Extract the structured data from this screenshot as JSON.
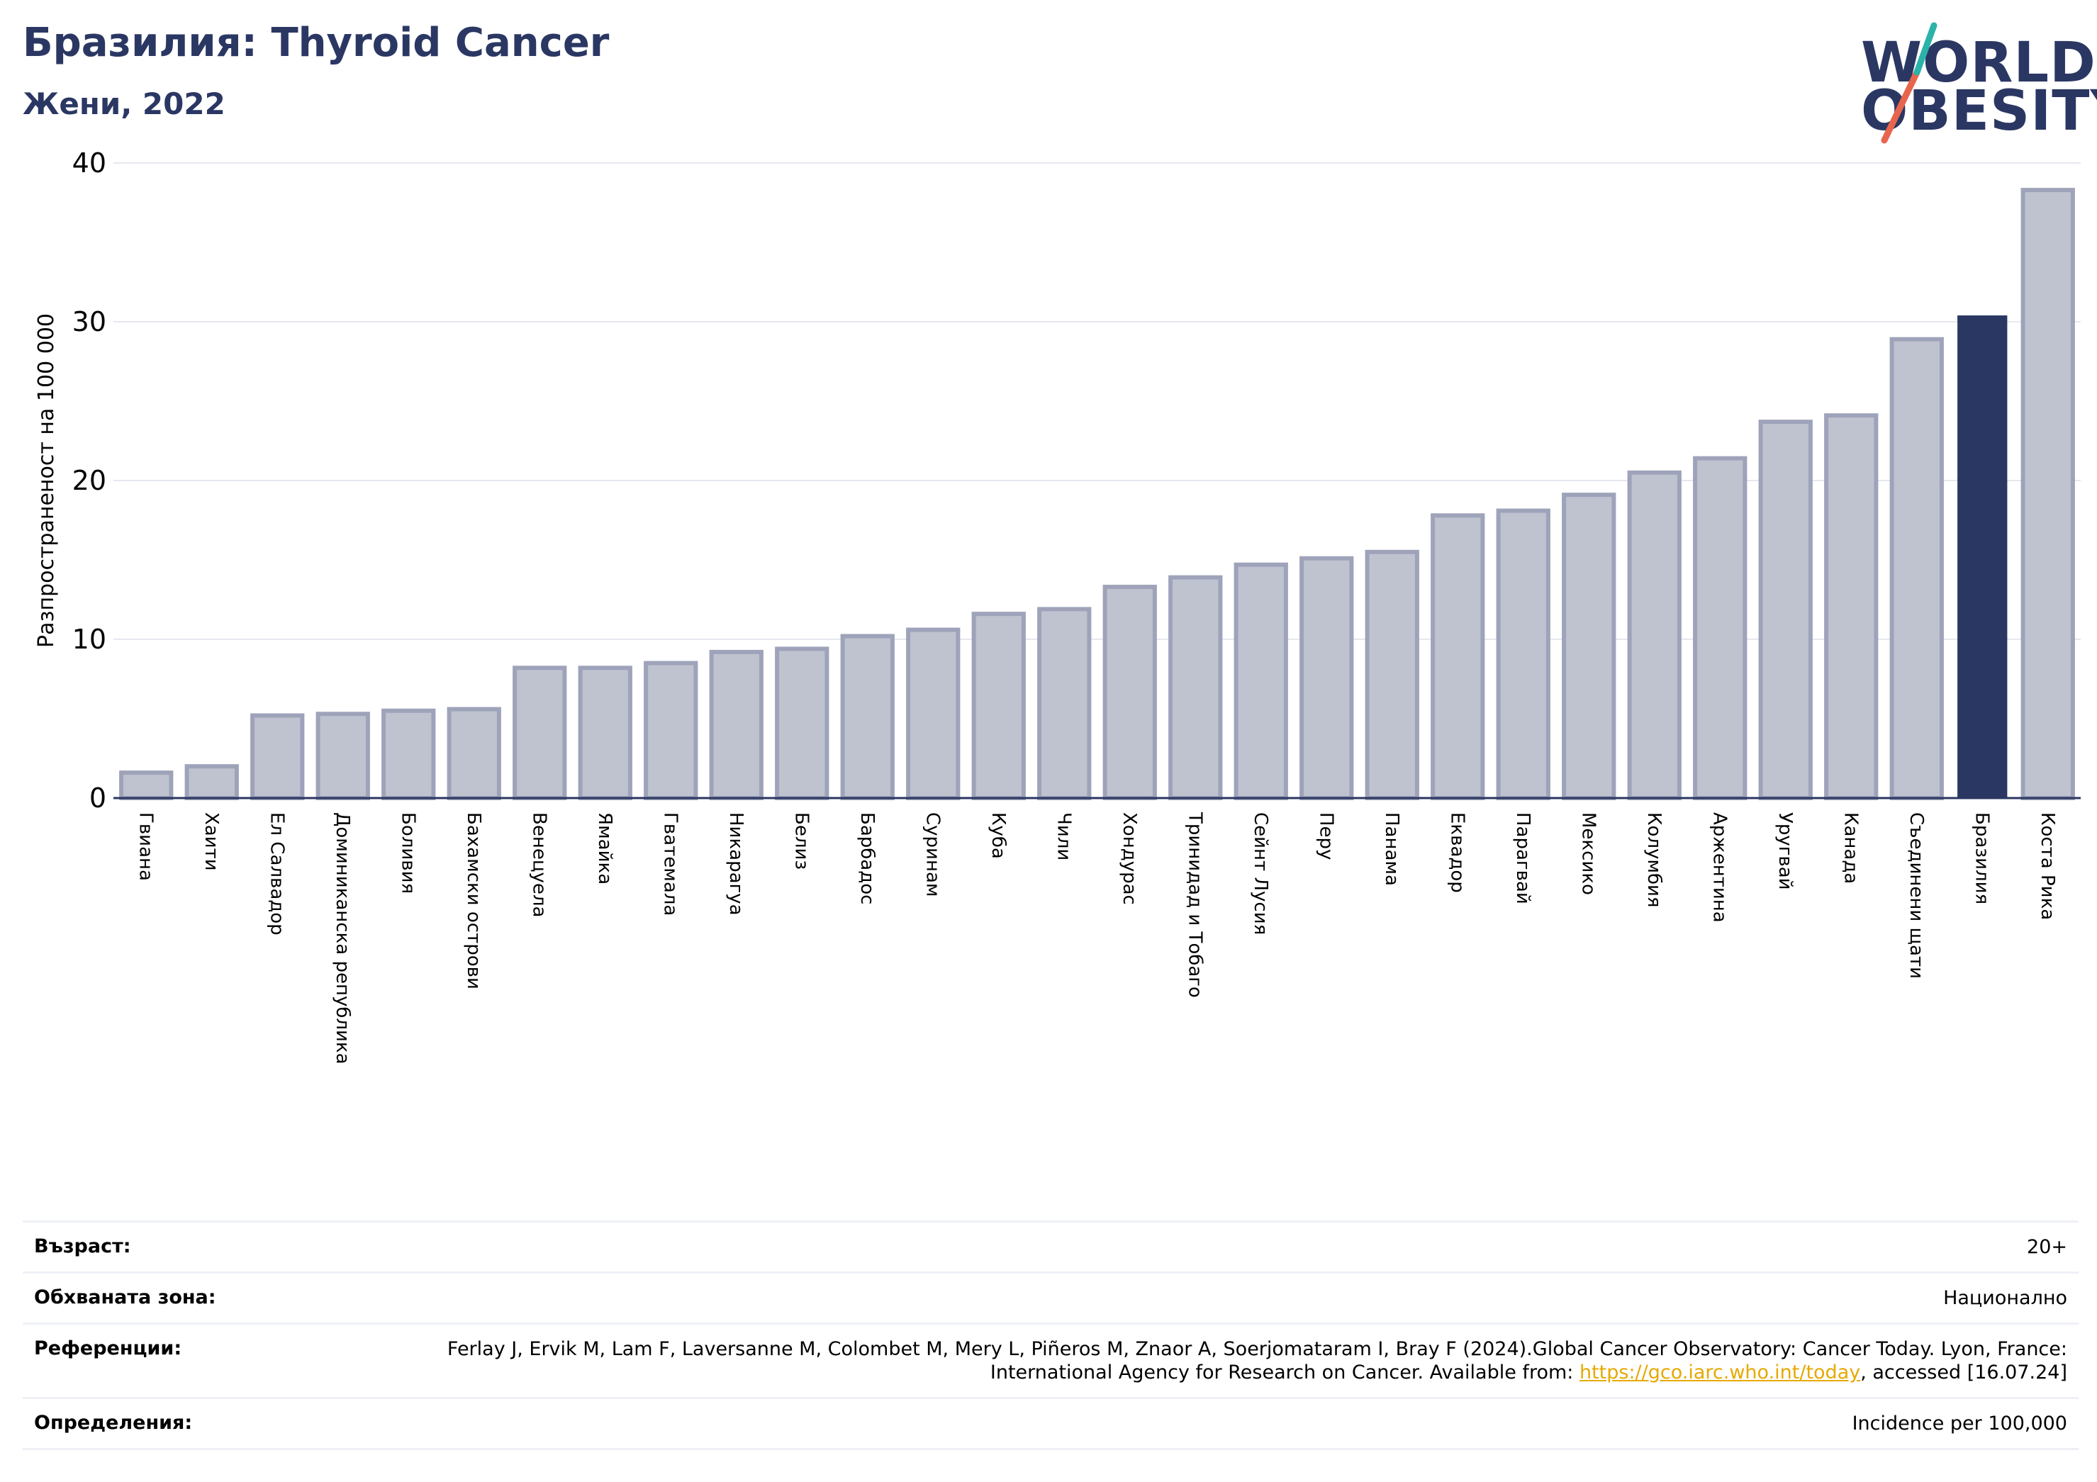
{
  "header": {
    "title": "Бразилия: Thyroid Cancer",
    "subtitle": "Жени, 2022"
  },
  "logo": {
    "line1": "WORLD",
    "line2": "OBESITY",
    "accent_teal": "#2bb3a9",
    "accent_orange": "#e8654d"
  },
  "chart_data": {
    "type": "bar",
    "ylabel": "Разпространеност  на 100 000",
    "ylim": [
      0,
      40
    ],
    "yticks": [
      0,
      10,
      20,
      30,
      40
    ],
    "grid": true,
    "highlight_category": "Бразилия",
    "colors": {
      "bar": "#bfc3d0",
      "bar_edge": "#9ea3ba",
      "highlight": "#2b3763",
      "grid": "#e6e8f0"
    },
    "categories": [
      "Гвиана",
      "Хаити",
      "Ел Салвадор",
      "Доминиканска република",
      "Боливия",
      "Бахамски острови",
      "Венецуела",
      "Ямайка",
      "Гватемала",
      "Никарагуа",
      "Белиз",
      "Барбадос",
      "Суринам",
      "Куба",
      "Чили",
      "Хондурас",
      "Тринидад и Тобаго",
      "Сейнт Лусия",
      "Перу",
      "Панама",
      "Еквадор",
      "Парагвай",
      "Мексико",
      "Колумбия",
      "Аржентина",
      "Уругвай",
      "Канада",
      "Съединени щати",
      "Бразилия",
      "Коста Рика"
    ],
    "values": [
      1.6,
      2.0,
      5.2,
      5.3,
      5.5,
      5.6,
      8.2,
      8.2,
      8.5,
      9.2,
      9.4,
      10.2,
      10.6,
      11.6,
      11.9,
      13.3,
      13.9,
      14.7,
      15.1,
      15.5,
      17.8,
      18.1,
      19.1,
      20.5,
      21.4,
      23.7,
      24.1,
      28.9,
      30.4,
      38.3
    ]
  },
  "info": [
    {
      "label": "Възраст:",
      "value": "20+"
    },
    {
      "label": "Обхваната зона:",
      "value": "Национално"
    },
    {
      "label": "Референции:",
      "value": "Ferlay J, Ervik M, Lam F, Laversanne M, Colombet M, Mery L, Piñeros M, Znaor A, Soerjomataram I, Bray F (2024).Global Cancer Observatory: Cancer Today. Lyon, France: International Agency for Research on Cancer. Available from: ",
      "link": "https://gco.iarc.who.int/today",
      "suffix": ", accessed [16.07.24]"
    },
    {
      "label": "Определения:",
      "value": "Incidence per 100,000"
    }
  ]
}
